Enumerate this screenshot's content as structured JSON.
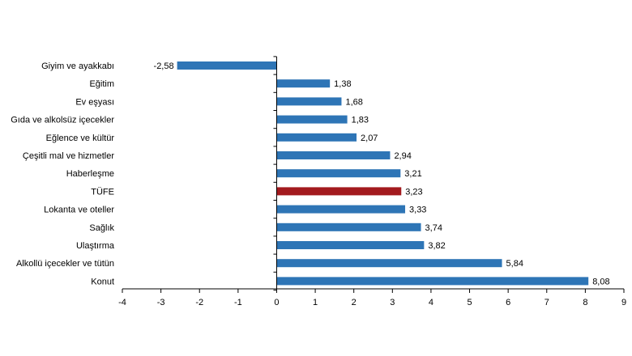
{
  "chart_data": {
    "type": "bar",
    "orientation": "horizontal",
    "title": "",
    "xlabel": "",
    "ylabel": "",
    "categories": [
      "Giyim ve ayakkabı",
      "Eğitim",
      "Ev eşyası",
      "Gıda ve alkolsüz içecekler",
      "Eğlence ve kültür",
      "Çeşitli mal ve hizmetler",
      "Haberleşme",
      "TÜFE",
      "Lokanta ve oteller",
      "Sağlık",
      "Ulaştırma",
      "Alkollü içecekler ve tütün",
      "Konut"
    ],
    "values": [
      -2.58,
      1.38,
      1.68,
      1.83,
      2.07,
      2.94,
      3.21,
      3.23,
      3.33,
      3.74,
      3.82,
      5.84,
      8.08
    ],
    "value_labels": [
      "-2,58",
      "1,38",
      "1,68",
      "1,83",
      "2,07",
      "2,94",
      "3,21",
      "3,23",
      "3,33",
      "3,74",
      "3,82",
      "5,84",
      "8,08"
    ],
    "highlight_category": "TÜFE",
    "xlim": [
      -4,
      9
    ],
    "x_ticks": [
      -4,
      -3,
      -2,
      -1,
      0,
      1,
      2,
      3,
      4,
      5,
      6,
      7,
      8,
      9
    ],
    "grid": false,
    "legend": "none",
    "colors": {
      "bar": "#2E75B6",
      "highlight": "#A31A1E",
      "axis": "#000000"
    }
  }
}
